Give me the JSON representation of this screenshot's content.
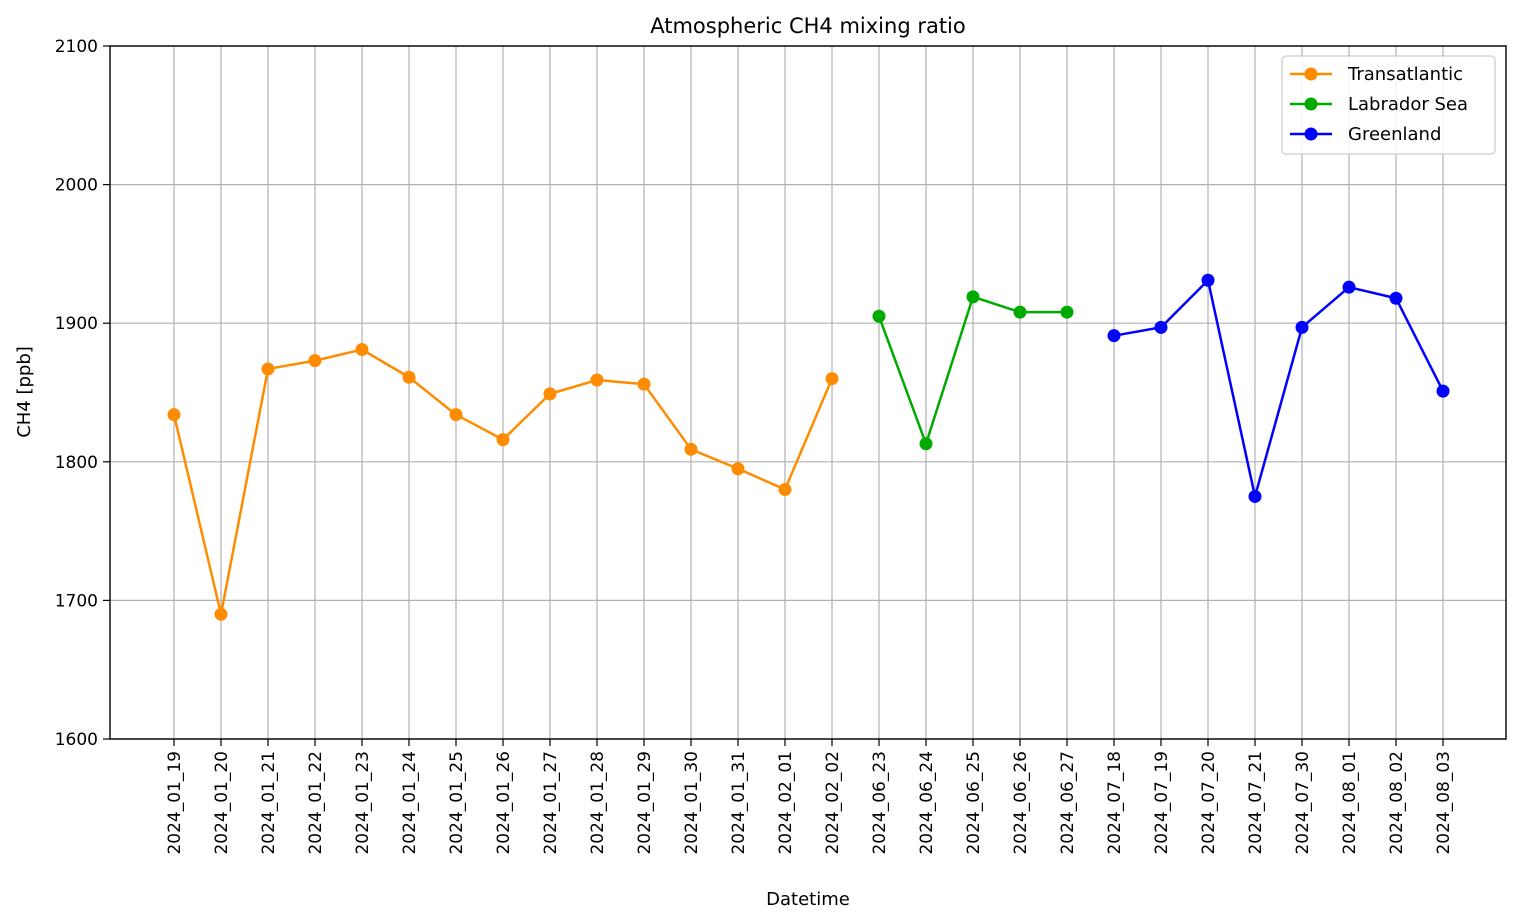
{
  "chart_data": {
    "type": "line",
    "title": "Atmospheric CH4 mixing ratio",
    "xlabel": "Datetime",
    "ylabel": "CH4 [ppb]",
    "ylim": [
      1600,
      2100
    ],
    "yticks": [
      1600,
      1700,
      1800,
      1900,
      2000,
      2100
    ],
    "grid": true,
    "legend_position": "top-right",
    "categories": [
      "2024_01_19",
      "2024_01_20",
      "2024_01_21",
      "2024_01_22",
      "2024_01_23",
      "2024_01_24",
      "2024_01_25",
      "2024_01_26",
      "2024_01_27",
      "2024_01_28",
      "2024_01_29",
      "2024_01_30",
      "2024_01_31",
      "2024_02_01",
      "2024_02_02",
      "2024_06_23",
      "2024_06_24",
      "2024_06_25",
      "2024_06_26",
      "2024_06_27",
      "2024_07_18",
      "2024_07_19",
      "2024_07_20",
      "2024_07_21",
      "2024_07_30",
      "2024_08_01",
      "2024_08_02",
      "2024_08_03"
    ],
    "series": [
      {
        "name": "Transatlantic",
        "color": "#ff8c00",
        "x": [
          "2024_01_19",
          "2024_01_20",
          "2024_01_21",
          "2024_01_22",
          "2024_01_23",
          "2024_01_24",
          "2024_01_25",
          "2024_01_26",
          "2024_01_27",
          "2024_01_28",
          "2024_01_29",
          "2024_01_30",
          "2024_01_31",
          "2024_02_01",
          "2024_02_02"
        ],
        "values": [
          1834,
          1690,
          1867,
          1873,
          1881,
          1861,
          1834,
          1816,
          1849,
          1859,
          1856,
          1809,
          1795,
          1780,
          1860
        ]
      },
      {
        "name": "Labrador Sea",
        "color": "#00aa00",
        "x": [
          "2024_06_23",
          "2024_06_24",
          "2024_06_25",
          "2024_06_26",
          "2024_06_27"
        ],
        "values": [
          1905,
          1813,
          1919,
          1908,
          1908
        ]
      },
      {
        "name": "Greenland",
        "color": "#0000ff",
        "x": [
          "2024_07_18",
          "2024_07_19",
          "2024_07_20",
          "2024_07_21",
          "2024_07_30",
          "2024_08_01",
          "2024_08_02",
          "2024_08_03"
        ],
        "values": [
          1891,
          1897,
          1931,
          1775,
          1897,
          1926,
          1918,
          1851
        ]
      }
    ]
  }
}
